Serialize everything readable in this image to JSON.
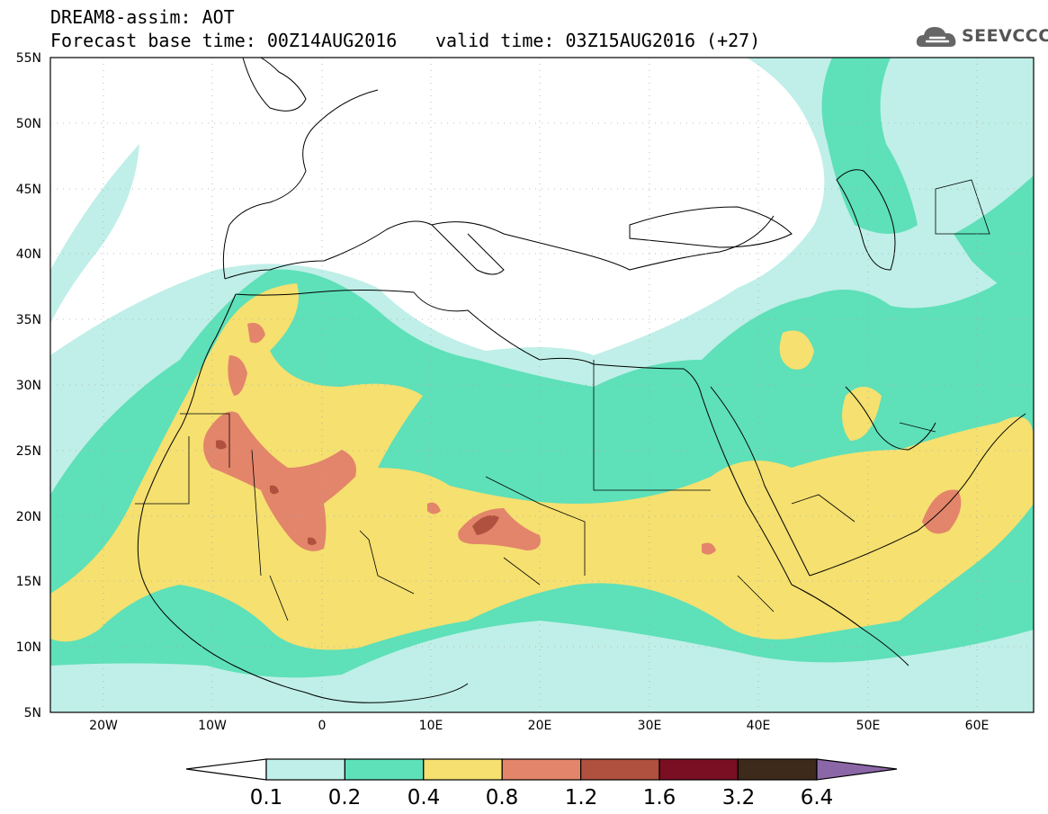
{
  "header": {
    "title": "DREAM8-assim: AOT",
    "base_time": "Forecast base time: 00Z14AUG2016",
    "valid_time": "valid time: 03Z15AUG2016 (+27)",
    "logo_text": "SEEVCCC",
    "logo_icon": "cloud-icon"
  },
  "map": {
    "lon_range": [
      -25,
      65
    ],
    "lat_range": [
      5,
      55
    ],
    "lat_ticks": [
      "55N",
      "50N",
      "45N",
      "40N",
      "35N",
      "30N",
      "25N",
      "20N",
      "15N",
      "10N",
      "5N"
    ],
    "lon_ticks": [
      "20W",
      "10W",
      "0",
      "10E",
      "20E",
      "30E",
      "40E",
      "50E",
      "60E"
    ],
    "grid": "dotted"
  },
  "legend": {
    "labels": [
      "0.1",
      "0.2",
      "0.4",
      "0.8",
      "1.2",
      "1.6",
      "3.2",
      "6.4"
    ],
    "colors": [
      "#bfefe8",
      "#5ee0b8",
      "#f5e070",
      "#e3856a",
      "#b0503e",
      "#7a0e22",
      "#3e2a1a",
      "#8c67a8"
    ]
  }
}
